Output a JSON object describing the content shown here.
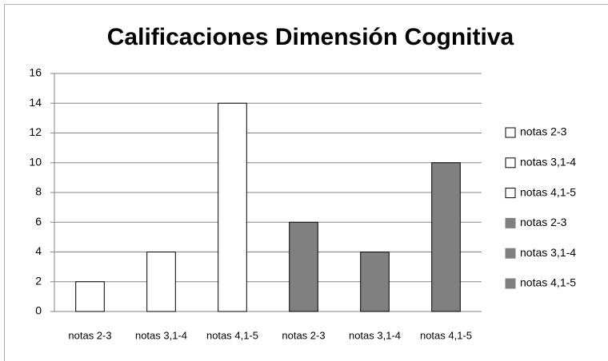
{
  "chart_data": {
    "type": "bar",
    "title": "Calificaciones  Dimensión Cognitiva",
    "categories": [
      "notas 2-3",
      "notas 3,1-4",
      "notas 4,1-5",
      "notas 2-3",
      "notas 3,1-4",
      "notas 4,1-5"
    ],
    "values": [
      2,
      4,
      14,
      6,
      4,
      10
    ],
    "colors": [
      "#ffffff",
      "#ffffff",
      "#ffffff",
      "#808080",
      "#808080",
      "#808080"
    ],
    "ylim": [
      0,
      16
    ],
    "yticks": [
      0,
      2,
      4,
      6,
      8,
      10,
      12,
      14,
      16
    ],
    "grid": true,
    "legend": "right"
  }
}
